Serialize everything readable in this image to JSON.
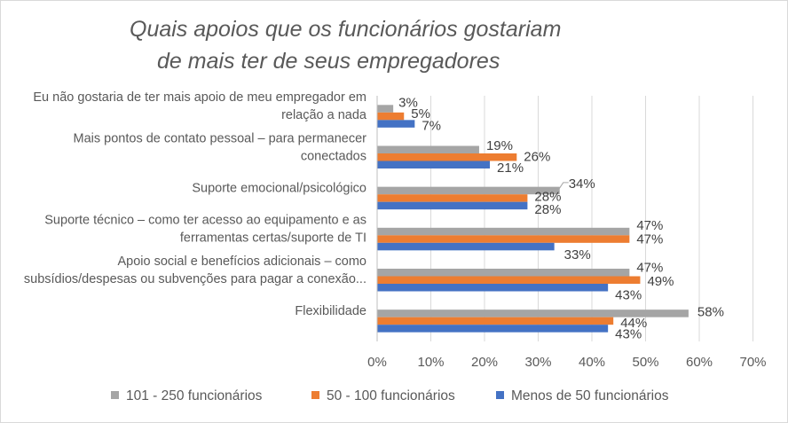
{
  "title_lines": [
    "Quais apoios que os funcionários gostariam",
    "de mais ter de seus empregadores"
  ],
  "chart_data": {
    "type": "bar",
    "orientation": "horizontal",
    "title": "Quais apoios que os funcionários gostariam de mais ter de seus empregadores",
    "categories": [
      [
        "Eu não gostaria de ter mais apoio de meu empregador em",
        "relação a nada"
      ],
      [
        "Mais pontos de contato pessoal – para permanecer",
        "conectados"
      ],
      [
        "Suporte emocional/psicológico"
      ],
      [
        "Suporte técnico – como ter acesso ao equipamento e as",
        "ferramentas certas/suporte de TI"
      ],
      [
        "Apoio social e benefícios adicionais – como",
        "subsídios/despesas ou subvenções para pagar a conexão..."
      ],
      [
        "Flexibilidade"
      ]
    ],
    "series": [
      {
        "name": "101 - 250 funcionários",
        "color": "#a5a5a5",
        "values": [
          3,
          19,
          34,
          47,
          47,
          58
        ],
        "labels": [
          "3%",
          "19%",
          "34%",
          "47%",
          "47%",
          "58%"
        ]
      },
      {
        "name": "50 - 100 funcionários",
        "color": "#ed7d31",
        "values": [
          5,
          26,
          28,
          47,
          49,
          44
        ],
        "labels": [
          "5%",
          "26%",
          "28%",
          "47%",
          "49%",
          "44%"
        ]
      },
      {
        "name": "Menos de 50 funcionários",
        "color": "#4472c4",
        "values": [
          7,
          21,
          28,
          33,
          43,
          43
        ],
        "labels": [
          "7%",
          "21%",
          "28%",
          "33%",
          "43%",
          "43%"
        ]
      }
    ],
    "x_ticks": [
      "0%",
      "10%",
      "20%",
      "30%",
      "40%",
      "50%",
      "60%",
      "70%"
    ],
    "xlim": [
      0,
      70
    ],
    "grid": true,
    "legend_position": "bottom"
  }
}
